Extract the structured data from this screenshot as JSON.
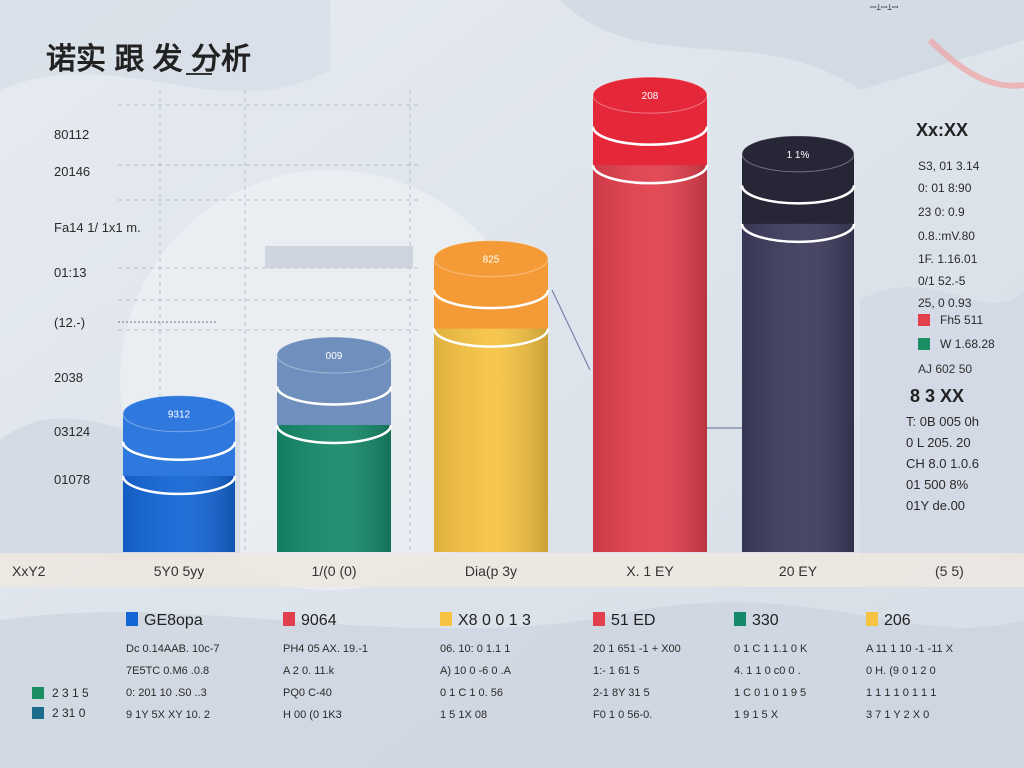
{
  "header": {
    "title": "诺实 跟 发 分析",
    "top_right": "ꟷꞱꟷꞱꟷ"
  },
  "left_labels": [
    "80112",
    "20146",
    "Fa14 1/ 1x1 m.",
    "01:13",
    "(12.-)",
    "2038",
    "03124",
    "01078"
  ],
  "x_axis_label": "XxY2",
  "bottom_right_label": "(5 5)",
  "right_panel": {
    "title": "Xx:XX",
    "values": [
      "S3, 01 3.14",
      "0: 01 8:90",
      "23 0: 0.9",
      "0.8.:mV.80",
      "1F. 1.16.01",
      "0/1 52.-5",
      "25, 0 0.93"
    ],
    "legend": [
      {
        "color": "#e23f4d",
        "label": "Fh5 511"
      },
      {
        "color": "#1a8d63",
        "label": "W 1.68.28"
      }
    ],
    "bottom_value": "AJ 602 50",
    "subtitle": "8 3 XX",
    "extra_values": [
      "T: 0B 005 0h",
      "0 L 205. 20",
      "CH 8.0 1.0.6",
      "01 500 8%",
      "01Y de.00"
    ]
  },
  "colors": {
    "blue": "#1466d6",
    "green": "#16896a",
    "yellow": "#f6c343",
    "red": "#e23f4d",
    "navy": "#3d3b5c"
  },
  "chart_data": {
    "type": "bar",
    "style": "3d-cylinder",
    "categories": [
      "5Y0 5yy",
      "1/(0 (0)",
      "Dia(p 3y",
      "X. 1 EY",
      "20 EY"
    ],
    "values": [
      330,
      470,
      700,
      1090,
      950
    ],
    "value_labels": [
      "9312",
      "009",
      "825",
      "208",
      "1 1%"
    ],
    "series_colors": [
      "#1466d6",
      "#16896a",
      "#f6c343",
      "#e23f4d",
      "#3d3b5c"
    ],
    "top_colors": [
      "#2f79de",
      "#6f90bc",
      "#f49a36",
      "#e4283a",
      "#272637"
    ],
    "ylim": [
      0,
      1150
    ],
    "grid": true,
    "legend_position": "bottom"
  },
  "legend_blocks": [
    {
      "color": "#1466d6",
      "title": "GE8opa",
      "lines": [
        "Dc 0.14AAB. 10c-7",
        "7E5TC 0.M6 .0.8",
        "0: 201 10 .S0 ..3",
        "9 1Y 5X XY 10. 2"
      ]
    },
    {
      "color": "#e23f4d",
      "title": "9064",
      "lines": [
        "PH4 05 AX. 19.-1",
        "A 2 0. 11.k",
        "PQ0 C-40",
        "H 00 (0 1K3"
      ]
    },
    {
      "color": "#f6c343",
      "title": "X8 0 0 1 3",
      "lines": [
        "06. 10: 0 1.1 1",
        "A) 10 0 -6 0 .A",
        "0 1 C 1 0. 56",
        "1 5 1X 08"
      ]
    },
    {
      "color": "#e23f4d",
      "title": "51 ED",
      "lines": [
        "20 1 651 -1 + X00",
        "1:- 1 61 5",
        "2-1 8Y 31 5",
        "F0 1 0 56-0."
      ]
    },
    {
      "color": "#16896a",
      "title": "330",
      "lines": [
        "0 1 C 1 1.1 0 K",
        "4. 1 1 0 c0 0 .",
        "1 C 0 1 0 1 9 5",
        "1 9 1 5 X"
      ]
    },
    {
      "color": "#f6c343",
      "title": "206",
      "lines": [
        "A 11 1 10 -1 -11 X",
        "0 H. (9 0 1 2 0",
        "1 1 1 1 0 1 1 1",
        "3 7 1 Y 2 X 0"
      ]
    }
  ],
  "left_legend": [
    {
      "color": "#1a8d63",
      "label": "2 3 1 5"
    },
    {
      "color": "#1d6b8a",
      "label": "2 31 0"
    }
  ]
}
